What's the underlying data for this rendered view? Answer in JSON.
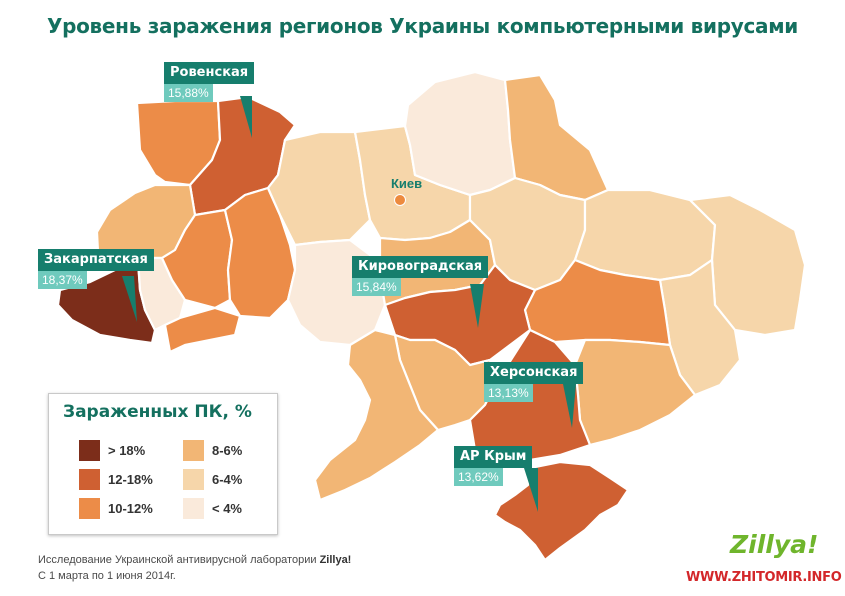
{
  "title": "Уровень заражения регионов Украины компьютерными вирусами",
  "colors": {
    "c1": "#7c2d1a",
    "c2": "#cf6032",
    "c3": "#ec8c48",
    "c4": "#f2b675",
    "c5": "#f6d6aa",
    "c6": "#faeadb",
    "teal": "#167e6d",
    "teal_light": "#6fcabd"
  },
  "capital": {
    "label": "Киев"
  },
  "callouts": [
    {
      "name": "Ровенская",
      "value": "15,88%"
    },
    {
      "name": "Закарпатская",
      "value": "18,37%"
    },
    {
      "name": "Кировоградская",
      "value": "15,84%"
    },
    {
      "name": "Херсонская",
      "value": "13,13%"
    },
    {
      "name": "АР Крым",
      "value": "13,62%"
    }
  ],
  "legend": {
    "title": "Зараженных ПК, %",
    "items": [
      {
        "label": "> 18%",
        "color": "#7c2d1a"
      },
      {
        "label": "12-18%",
        "color": "#cf6032"
      },
      {
        "label": "10-12%",
        "color": "#ec8c48"
      },
      {
        "label": "8-6%",
        "color": "#f2b675"
      },
      {
        "label": "6-4%",
        "color": "#f6d6aa"
      },
      {
        "label": "< 4%",
        "color": "#faeadb"
      }
    ]
  },
  "footer": {
    "line1_prefix": "Исследование Украинской антивирусной лаборатории ",
    "line1_brand": "Zillya!",
    "line2": "С 1 марта по 1 июня 2014г."
  },
  "logo": "Zillya!",
  "watermark": "WWW.ZHITOMIR.INFO"
}
